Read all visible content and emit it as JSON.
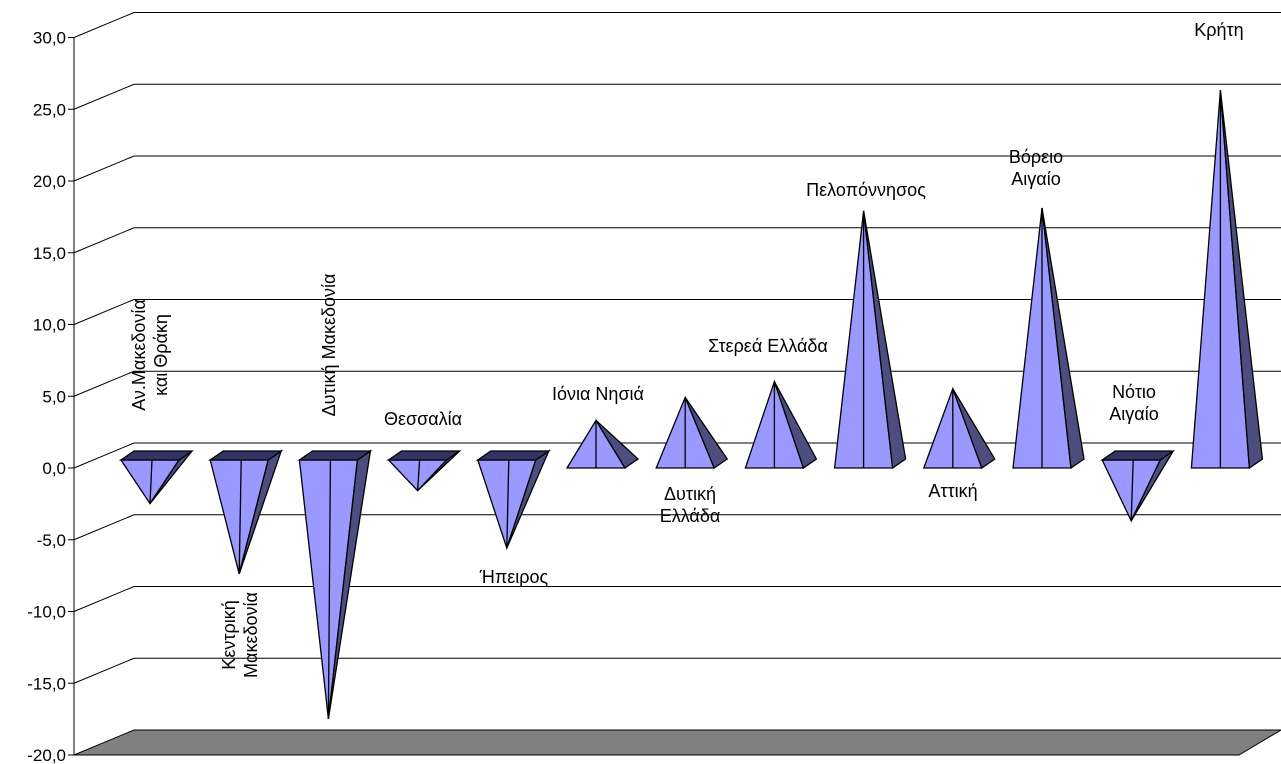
{
  "chart_data": {
    "type": "bar",
    "bar_shape": "pyramid-3d",
    "categories": [
      [
        "Αν.Μακεδονία",
        "και Θράκη"
      ],
      [
        "Κεντρική",
        "Μακεδονία"
      ],
      [
        "Δυτική Μακεδονία"
      ],
      [
        "Θεσσαλία"
      ],
      [
        "Ήπειρος"
      ],
      [
        "Ιόνια Νησιά"
      ],
      [
        "Δυτική",
        "Ελλάδα"
      ],
      [
        "Στερεά Ελλάδα"
      ],
      [
        "Πελοπόννησος"
      ],
      [
        "Αττική"
      ],
      [
        "Βόρειο",
        "Αιγαίο"
      ],
      [
        "Νότιο",
        "Αιγαίο"
      ],
      [
        "Κρήτη"
      ]
    ],
    "values": [
      -2.9,
      -7.8,
      -17.9,
      -2.0,
      -6.0,
      2.9,
      4.5,
      5.6,
      17.5,
      5.1,
      17.7,
      -4.1,
      25.9
    ],
    "ylim": [
      -20,
      30
    ],
    "yticks": [
      "-20,0",
      "-15,0",
      "-10,0",
      "-5,0",
      "0,0",
      "5,0",
      "10,0",
      "15,0",
      "20,0",
      "25,0",
      "30,0"
    ],
    "grid": true,
    "legend": "none",
    "colors": {
      "face_light": "#9999ff",
      "face_dark": "#4d4d80",
      "top": "#333366",
      "floor": "#808080",
      "grid": "#000000"
    }
  }
}
